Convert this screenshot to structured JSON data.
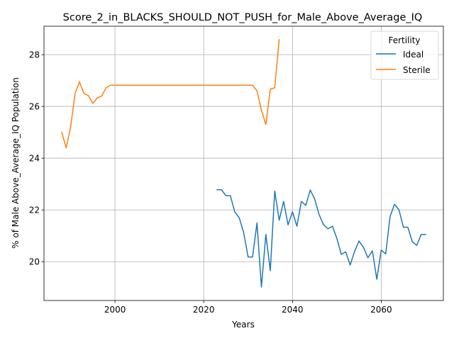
{
  "chart_data": {
    "type": "line",
    "title": "Score_2_in_BLACKS_SHOULD_NOT_PUSH_for_Male_Above_Average_IQ",
    "xlabel": "Years",
    "ylabel": "% of Male Above_Average_IQ Population",
    "xlim": [
      1984,
      2074
    ],
    "ylim": [
      18.5,
      29.1
    ],
    "xticks": [
      2000,
      2020,
      2040,
      2060
    ],
    "yticks": [
      20,
      22,
      24,
      26,
      28
    ],
    "grid": true,
    "legend": {
      "title": "Fertility",
      "placement": "top-right"
    },
    "series": [
      {
        "name": "Ideal",
        "color": "#1f77b4",
        "x": [
          2023,
          2024,
          2025,
          2026,
          2027,
          2028,
          2029,
          2030,
          2031,
          2032,
          2033,
          2034,
          2035,
          2036,
          2037,
          2038,
          2039,
          2040,
          2041,
          2042,
          2043,
          2044,
          2045,
          2046,
          2047,
          2048,
          2049,
          2050,
          2051,
          2052,
          2053,
          2054,
          2055,
          2056,
          2057,
          2058,
          2059,
          2060,
          2061,
          2062,
          2063,
          2064,
          2065,
          2066,
          2067,
          2068,
          2069,
          2070
        ],
        "y": [
          22.78,
          22.78,
          22.55,
          22.55,
          21.92,
          21.7,
          21.12,
          20.18,
          20.18,
          21.5,
          19.02,
          21.05,
          19.65,
          22.73,
          21.6,
          22.33,
          21.42,
          21.93,
          21.37,
          22.33,
          22.18,
          22.77,
          22.42,
          21.82,
          21.43,
          21.27,
          21.37,
          20.9,
          20.28,
          20.38,
          19.87,
          20.4,
          20.8,
          20.55,
          20.15,
          20.42,
          19.32,
          20.45,
          20.3,
          21.75,
          22.22,
          22.0,
          21.33,
          21.33,
          20.77,
          20.63,
          21.05,
          21.05
        ]
      },
      {
        "name": "Sterile",
        "color": "#ff7f0e",
        "x": [
          1988,
          1989,
          1990,
          1991,
          1992,
          1993,
          1994,
          1995,
          1996,
          1997,
          1998,
          1999,
          2000,
          2001,
          2002,
          2003,
          2004,
          2005,
          2006,
          2007,
          2008,
          2009,
          2010,
          2011,
          2012,
          2013,
          2014,
          2015,
          2016,
          2017,
          2018,
          2019,
          2020,
          2021,
          2022,
          2023,
          2024,
          2025,
          2026,
          2027,
          2028,
          2029,
          2030,
          2031,
          2032,
          2033,
          2034,
          2035,
          2036,
          2037
        ],
        "y": [
          25.0,
          24.4,
          25.2,
          26.5,
          26.95,
          26.5,
          26.42,
          26.12,
          26.33,
          26.4,
          26.72,
          26.82,
          26.82,
          26.82,
          26.82,
          26.82,
          26.82,
          26.82,
          26.82,
          26.82,
          26.82,
          26.82,
          26.82,
          26.82,
          26.82,
          26.82,
          26.82,
          26.82,
          26.82,
          26.82,
          26.82,
          26.82,
          26.82,
          26.82,
          26.82,
          26.82,
          26.82,
          26.82,
          26.82,
          26.82,
          26.82,
          26.82,
          26.82,
          26.82,
          26.6,
          25.85,
          25.3,
          26.67,
          26.72,
          28.58
        ]
      }
    ]
  }
}
